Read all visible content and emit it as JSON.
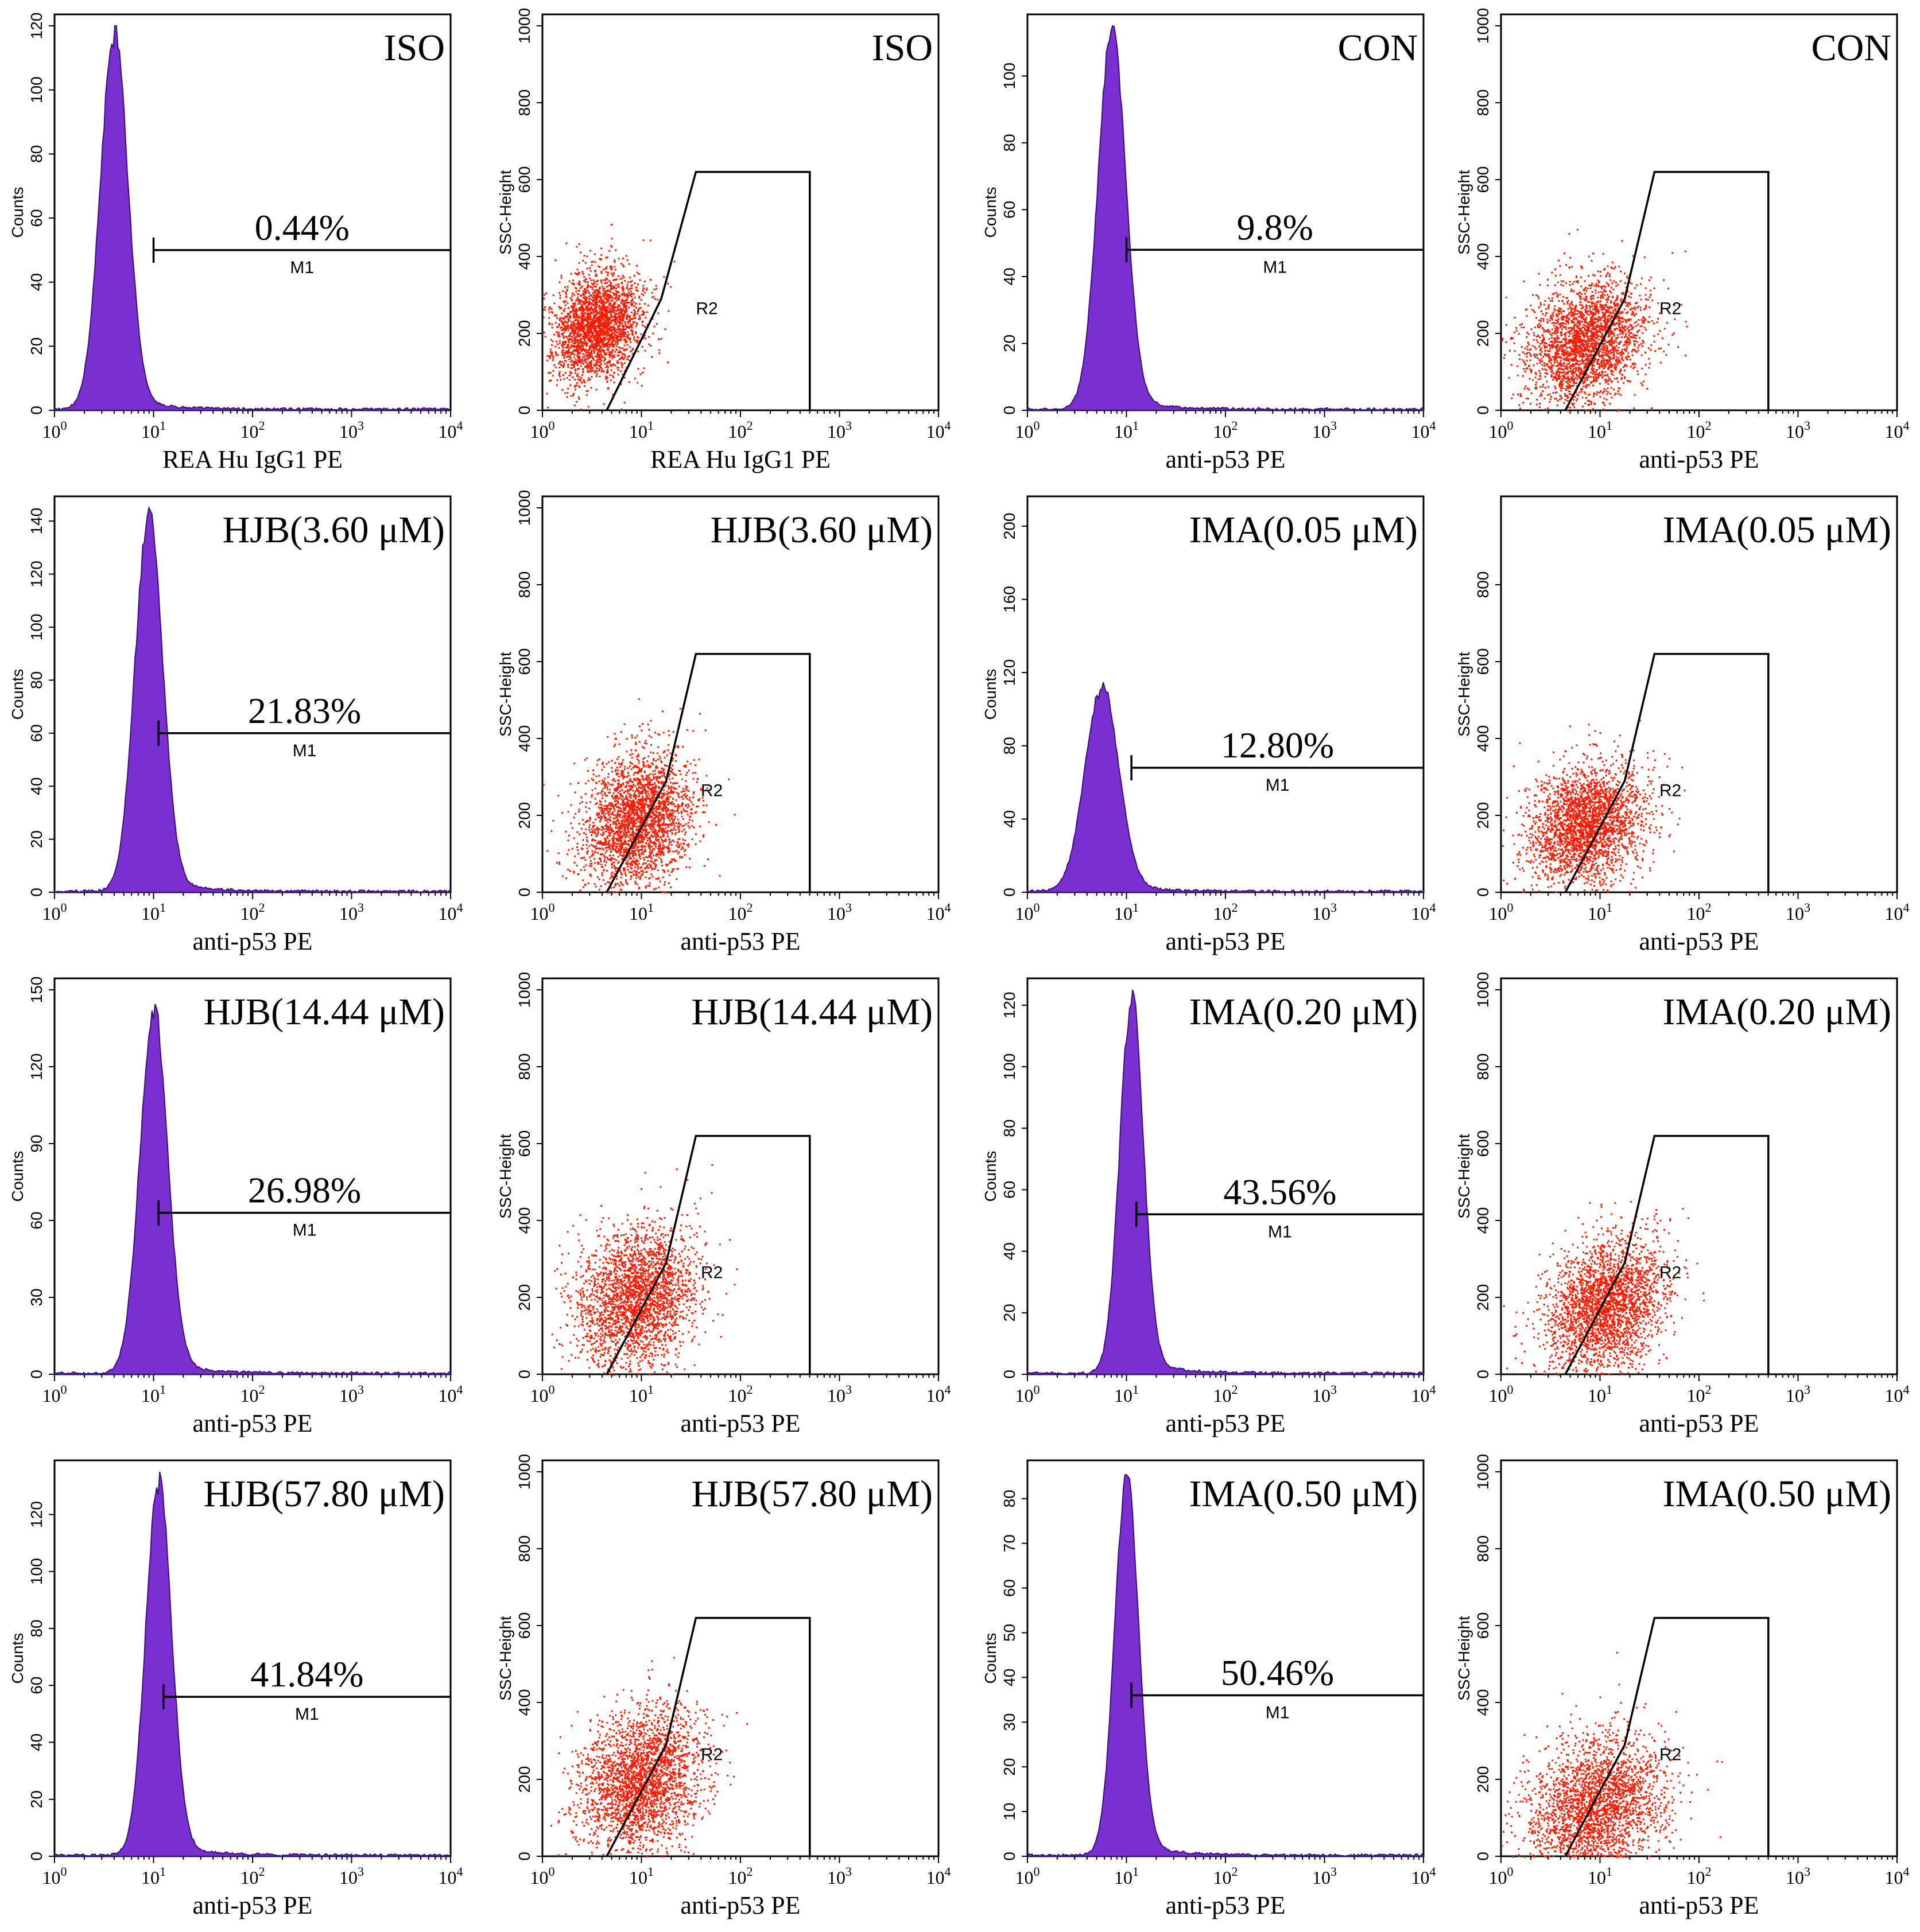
{
  "figure": {
    "description_note": "Flow cytometry of p53: histograms (Counts vs PE) and SSC-Height vs PE dot plots",
    "colors": {
      "histogram": "#7b2fd0",
      "dots": "#ff1a00",
      "axes": "#000000"
    },
    "x_tick_labels": [
      [
        "10",
        "0"
      ],
      [
        "10",
        "1"
      ],
      [
        "10",
        "2"
      ],
      [
        "10",
        "3"
      ],
      [
        "10",
        "4"
      ]
    ],
    "marker_label": "M1",
    "gate_label": "R2",
    "hist_ylabel": "Counts",
    "dot_ylabel": "SSC-Height"
  },
  "chart_data": [
    {
      "type": "histogram",
      "row": 0,
      "col": 0,
      "title": "ISO",
      "xlabel": "REA Hu IgG1 PE",
      "ylabel": "Counts",
      "ylim": [
        0,
        120
      ],
      "yticks": [
        0,
        20,
        40,
        60,
        80,
        100,
        120
      ],
      "peak_log10": 0.6,
      "peak_count": 115,
      "width": 0.14,
      "marker_start_log10": 1.0,
      "marker_level": 50,
      "percent": "0.44%"
    },
    {
      "type": "scatter",
      "row": 0,
      "col": 1,
      "title": "ISO",
      "xlabel": "REA Hu IgG1 PE",
      "ylabel": "SSC-Height",
      "ylim": [
        0,
        1000
      ],
      "yticks": [
        0,
        200,
        400,
        600,
        800,
        1000
      ],
      "center_log10": 0.55,
      "center_ssc": 220,
      "spread_log10": 0.22,
      "spread_ssc": 70,
      "gate": [
        [
          0.65,
          0
        ],
        [
          1.2,
          290
        ],
        [
          1.55,
          620
        ],
        [
          2.7,
          620
        ],
        [
          2.7,
          0
        ]
      ],
      "gate_label_pos": [
        1.55,
        250
      ]
    },
    {
      "type": "histogram",
      "row": 0,
      "col": 2,
      "title": "CON",
      "xlabel": "anti-p53 PE",
      "ylabel": "Counts",
      "ylim": [
        0,
        115
      ],
      "yticks": [
        0,
        20,
        40,
        60,
        80,
        100
      ],
      "peak_log10": 0.85,
      "peak_count": 112,
      "width": 0.14,
      "marker_start_log10": 1.0,
      "marker_level": 48,
      "percent": "9.8%"
    },
    {
      "type": "scatter",
      "row": 0,
      "col": 3,
      "title": "CON",
      "xlabel": "anti-p53 PE",
      "ylabel": "SSC-Height",
      "ylim": [
        0,
        1000
      ],
      "yticks": [
        0,
        200,
        400,
        600,
        800,
        1000
      ],
      "center_log10": 0.85,
      "center_ssc": 180,
      "spread_log10": 0.3,
      "spread_ssc": 80,
      "gate": [
        [
          0.65,
          0
        ],
        [
          1.25,
          290
        ],
        [
          1.55,
          620
        ],
        [
          2.7,
          620
        ],
        [
          2.7,
          0
        ]
      ],
      "gate_label_pos": [
        1.6,
        250
      ]
    },
    {
      "type": "histogram",
      "row": 1,
      "col": 0,
      "title": "HJB(3.60 μM)",
      "xlabel": "anti-p53 PE",
      "ylabel": "Counts",
      "ylim": [
        0,
        145
      ],
      "yticks": [
        0,
        20,
        40,
        60,
        80,
        100,
        120,
        140
      ],
      "peak_log10": 0.95,
      "peak_count": 140,
      "width": 0.14,
      "marker_start_log10": 1.05,
      "marker_level": 60,
      "percent": "21.83%"
    },
    {
      "type": "scatter",
      "row": 1,
      "col": 1,
      "title": "HJB(3.60 μM)",
      "xlabel": "anti-p53 PE",
      "ylabel": "SSC-Height",
      "ylim": [
        0,
        1000
      ],
      "yticks": [
        0,
        200,
        400,
        600,
        800,
        1000
      ],
      "center_log10": 0.95,
      "center_ssc": 190,
      "spread_log10": 0.28,
      "spread_ssc": 85,
      "gate": [
        [
          0.65,
          0
        ],
        [
          1.25,
          290
        ],
        [
          1.55,
          620
        ],
        [
          2.7,
          620
        ],
        [
          2.7,
          0
        ]
      ],
      "gate_label_pos": [
        1.6,
        250
      ]
    },
    {
      "type": "histogram",
      "row": 1,
      "col": 2,
      "title": "IMA(0.05 μM)",
      "xlabel": "anti-p53 PE",
      "ylabel": "Counts",
      "ylim": [
        0,
        210
      ],
      "yticks": [
        0,
        40,
        80,
        120,
        160,
        200
      ],
      "peak_log10": 0.75,
      "peak_count": 110,
      "width": 0.17,
      "marker_start_log10": 1.05,
      "marker_level": 68,
      "percent": "12.80%"
    },
    {
      "type": "scatter",
      "row": 1,
      "col": 3,
      "title": "IMA(0.05 μM)",
      "xlabel": "anti-p53 PE",
      "ylabel": "SSC-Height",
      "ylim": [
        0,
        1000
      ],
      "yticks": [
        0,
        200,
        400,
        600,
        800
      ],
      "center_log10": 0.85,
      "center_ssc": 180,
      "spread_log10": 0.3,
      "spread_ssc": 75,
      "gate": [
        [
          0.65,
          0
        ],
        [
          1.25,
          290
        ],
        [
          1.55,
          620
        ],
        [
          2.7,
          620
        ],
        [
          2.7,
          0
        ]
      ],
      "gate_label_pos": [
        1.6,
        250
      ]
    },
    {
      "type": "histogram",
      "row": 2,
      "col": 0,
      "title": "HJB(14.44 μM)",
      "xlabel": "anti-p53 PE",
      "ylabel": "Counts",
      "ylim": [
        0,
        150
      ],
      "yticks": [
        0,
        30,
        60,
        90,
        120,
        150
      ],
      "peak_log10": 1.0,
      "peak_count": 140,
      "width": 0.14,
      "marker_start_log10": 1.05,
      "marker_level": 63,
      "percent": "26.98%"
    },
    {
      "type": "scatter",
      "row": 2,
      "col": 1,
      "title": "HJB(14.44 μM)",
      "xlabel": "anti-p53 PE",
      "ylabel": "SSC-Height",
      "ylim": [
        0,
        1000
      ],
      "yticks": [
        0,
        200,
        400,
        600,
        800,
        1000
      ],
      "center_log10": 0.95,
      "center_ssc": 200,
      "spread_log10": 0.3,
      "spread_ssc": 90,
      "gate": [
        [
          0.65,
          0
        ],
        [
          1.25,
          290
        ],
        [
          1.55,
          620
        ],
        [
          2.7,
          620
        ],
        [
          2.7,
          0
        ]
      ],
      "gate_label_pos": [
        1.6,
        250
      ]
    },
    {
      "type": "histogram",
      "row": 2,
      "col": 2,
      "title": "IMA(0.20 μM)",
      "xlabel": "anti-p53 PE",
      "ylabel": "Counts",
      "ylim": [
        0,
        125
      ],
      "yticks": [
        0,
        20,
        40,
        60,
        80,
        100,
        120
      ],
      "peak_log10": 1.05,
      "peak_count": 120,
      "width": 0.12,
      "marker_start_log10": 1.1,
      "marker_level": 52,
      "percent": "43.56%"
    },
    {
      "type": "scatter",
      "row": 2,
      "col": 3,
      "title": "IMA(0.20 μM)",
      "xlabel": "anti-p53 PE",
      "ylabel": "SSC-Height",
      "ylim": [
        0,
        1000
      ],
      "yticks": [
        0,
        200,
        400,
        600,
        800,
        1000
      ],
      "center_log10": 1.05,
      "center_ssc": 180,
      "spread_log10": 0.3,
      "spread_ssc": 85,
      "gate": [
        [
          0.65,
          0
        ],
        [
          1.25,
          290
        ],
        [
          1.55,
          620
        ],
        [
          2.7,
          620
        ],
        [
          2.7,
          0
        ]
      ],
      "gate_label_pos": [
        1.6,
        250
      ]
    },
    {
      "type": "histogram",
      "row": 3,
      "col": 0,
      "title": "HJB(57.80 μM)",
      "xlabel": "anti-p53 PE",
      "ylabel": "Counts",
      "ylim": [
        0,
        135
      ],
      "yticks": [
        0,
        20,
        40,
        60,
        80,
        100,
        120
      ],
      "peak_log10": 1.05,
      "peak_count": 130,
      "width": 0.13,
      "marker_start_log10": 1.1,
      "marker_level": 56,
      "percent": "41.84%"
    },
    {
      "type": "scatter",
      "row": 3,
      "col": 1,
      "title": "HJB(57.80 μM)",
      "xlabel": "anti-p53 PE",
      "ylabel": "SSC-Height",
      "ylim": [
        0,
        1000
      ],
      "yticks": [
        0,
        200,
        400,
        600,
        800,
        1000
      ],
      "center_log10": 1.0,
      "center_ssc": 200,
      "spread_log10": 0.3,
      "spread_ssc": 90,
      "gate": [
        [
          0.65,
          0
        ],
        [
          1.25,
          290
        ],
        [
          1.55,
          620
        ],
        [
          2.7,
          620
        ],
        [
          2.7,
          0
        ]
      ],
      "gate_label_pos": [
        1.6,
        250
      ]
    },
    {
      "type": "histogram",
      "row": 3,
      "col": 2,
      "title": "IMA(0.50 μM)",
      "xlabel": "anti-p53 PE",
      "ylabel": "Counts",
      "ylim": [
        0,
        86
      ],
      "yticks": [
        0,
        10,
        20,
        30,
        40,
        50,
        60,
        70,
        80
      ],
      "peak_log10": 1.0,
      "peak_count": 84,
      "width": 0.12,
      "marker_start_log10": 1.05,
      "marker_level": 36,
      "percent": "50.46%"
    },
    {
      "type": "scatter",
      "row": 3,
      "col": 3,
      "title": "IMA(0.50 μM)",
      "xlabel": "anti-p53 PE",
      "ylabel": "SSC-Height",
      "ylim": [
        0,
        1000
      ],
      "yticks": [
        0,
        200,
        400,
        600,
        800,
        1000
      ],
      "center_log10": 0.95,
      "center_ssc": 130,
      "spread_log10": 0.35,
      "spread_ssc": 90,
      "gate": [
        [
          0.65,
          0
        ],
        [
          1.25,
          290
        ],
        [
          1.55,
          620
        ],
        [
          2.7,
          620
        ],
        [
          2.7,
          0
        ]
      ],
      "gate_label_pos": [
        1.6,
        250
      ]
    }
  ]
}
